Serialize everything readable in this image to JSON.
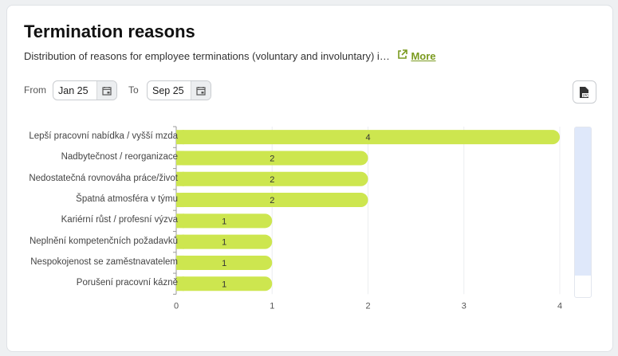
{
  "header": {
    "title": "Termination reasons",
    "description": "Distribution of reasons for employee terminations (voluntary and involuntary) i…",
    "more_label": "More"
  },
  "filters": {
    "from_label": "From",
    "from_value": "Jan 25",
    "to_label": "To",
    "to_value": "Sep 25"
  },
  "export": {
    "icon": "jpg-file-icon"
  },
  "colors": {
    "bar": "#cde64f",
    "accent": "#7a9a1e"
  },
  "chart_data": {
    "type": "bar",
    "orientation": "horizontal",
    "categories": [
      "Lepší pracovní nabídka / vyšší mzda",
      "Nadbytečnost / reorganizace",
      "Nedostatečná rovnováha práce/život",
      "Špatná atmosféra v týmu",
      "Kariérní růst / profesní výzva",
      "Neplnění kompetenčních požadavků",
      "Nespokojenost se zaměstnavatelem",
      "Porušení pracovní kázně"
    ],
    "values": [
      4,
      2,
      2,
      2,
      1,
      1,
      1,
      1
    ],
    "xlim": [
      0,
      4
    ],
    "xticks": [
      "0",
      "1",
      "2",
      "3",
      "4"
    ],
    "grid": true
  }
}
